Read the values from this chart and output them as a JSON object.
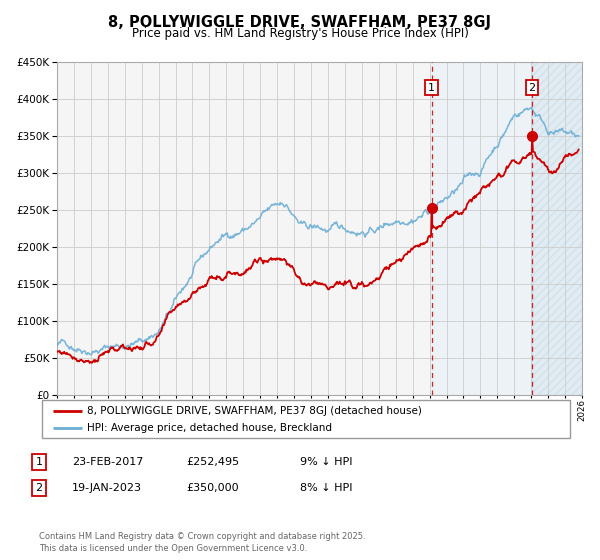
{
  "title": "8, POLLYWIGGLE DRIVE, SWAFFHAM, PE37 8GJ",
  "subtitle": "Price paid vs. HM Land Registry's House Price Index (HPI)",
  "hpi_label": "HPI: Average price, detached house, Breckland",
  "property_label": "8, POLLYWIGGLE DRIVE, SWAFFHAM, PE37 8GJ (detached house)",
  "annotation1": {
    "num": "1",
    "date": "23-FEB-2017",
    "price": "£252,495",
    "pct": "9% ↓ HPI",
    "x_year": 2017.12,
    "y_val": 252495
  },
  "annotation2": {
    "num": "2",
    "date": "19-JAN-2023",
    "price": "£350,000",
    "pct": "8% ↓ HPI",
    "x_year": 2023.05,
    "y_val": 350000
  },
  "footer": "Contains HM Land Registry data © Crown copyright and database right 2025.\nThis data is licensed under the Open Government Licence v3.0.",
  "ylim": [
    0,
    450000
  ],
  "xlim_start": 1995,
  "xlim_end": 2026,
  "hpi_color": "#6baed6",
  "property_color": "#cc0000",
  "shade_color": "#ddeef7",
  "hatch_color": "#c8dff0",
  "vline_color": "#cc0000",
  "background_color": "#f5f5f5",
  "grid_color": "#cccccc",
  "legend_border_color": "#999999"
}
